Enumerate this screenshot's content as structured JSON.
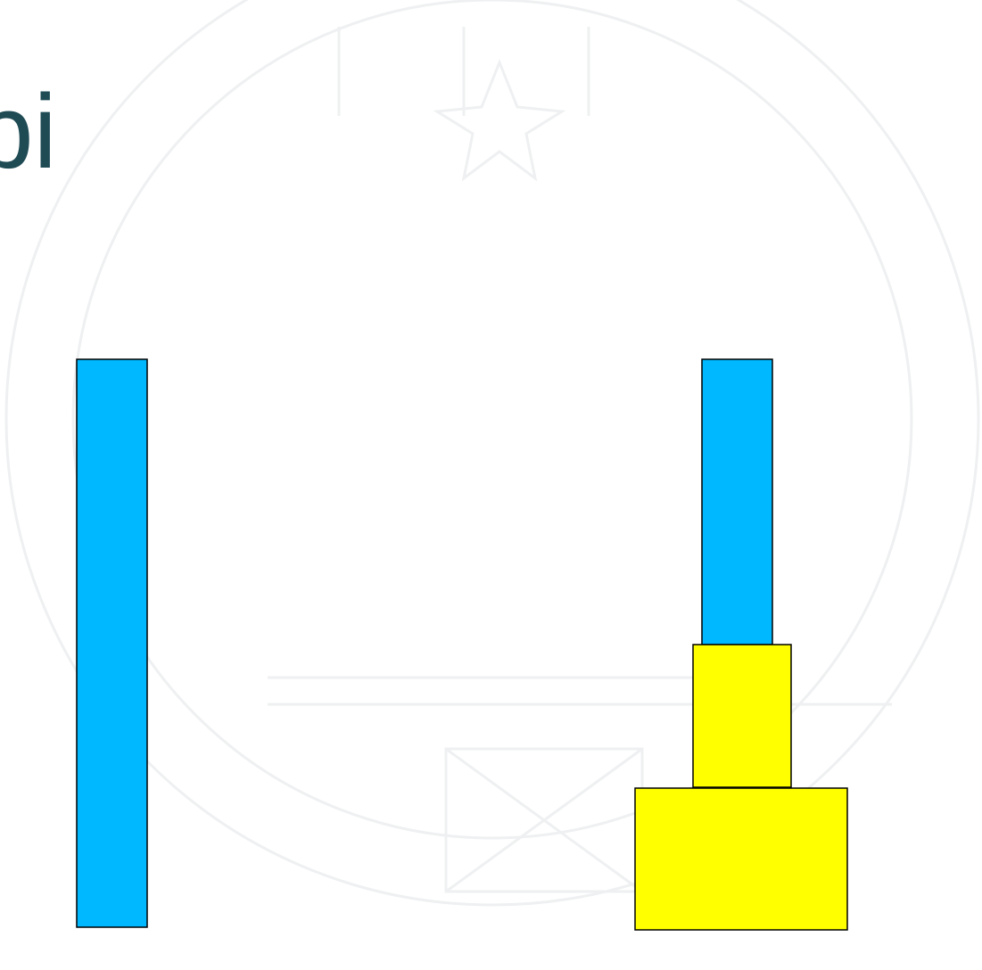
{
  "title": "bi"
}
